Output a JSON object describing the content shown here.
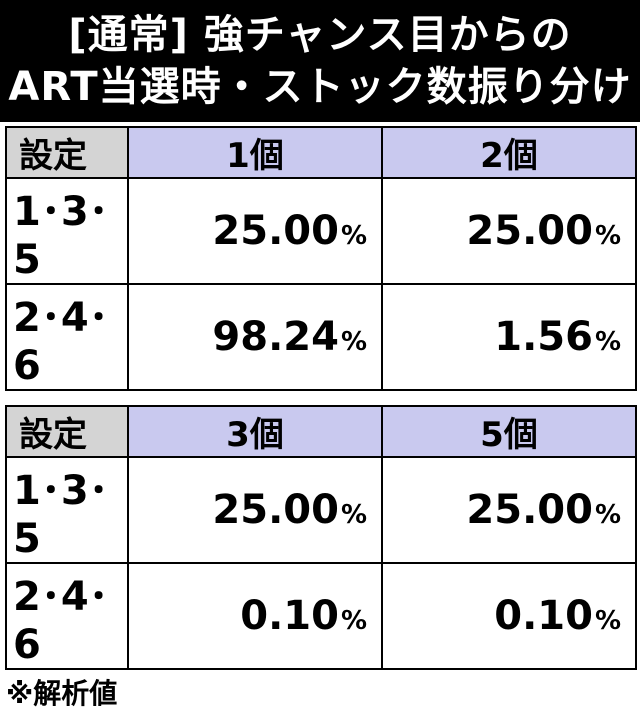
{
  "title": {
    "line1": "[通常] 強チャンス目からの",
    "line2": "ART当選時・ストック数振り分け"
  },
  "table1": {
    "header": [
      "設定",
      "1個",
      "2個"
    ],
    "rows": [
      {
        "setting": "1･3･5",
        "v1": "25.00",
        "v2": "25.00"
      },
      {
        "setting": "2･4･6",
        "v1": "98.24",
        "v2": "1.56"
      }
    ]
  },
  "table2": {
    "header": [
      "設定",
      "3個",
      "5個"
    ],
    "rows": [
      {
        "setting": "1･3･5",
        "v1": "25.00",
        "v2": "25.00"
      },
      {
        "setting": "2･4･6",
        "v1": "0.10",
        "v2": "0.10"
      }
    ]
  },
  "percent_sign": "%",
  "footnote": "※解析値",
  "colors": {
    "title_bg": "#000000",
    "setting_header_bg": "#d4d4d4",
    "count_header_bg": "#c9c9ef"
  }
}
